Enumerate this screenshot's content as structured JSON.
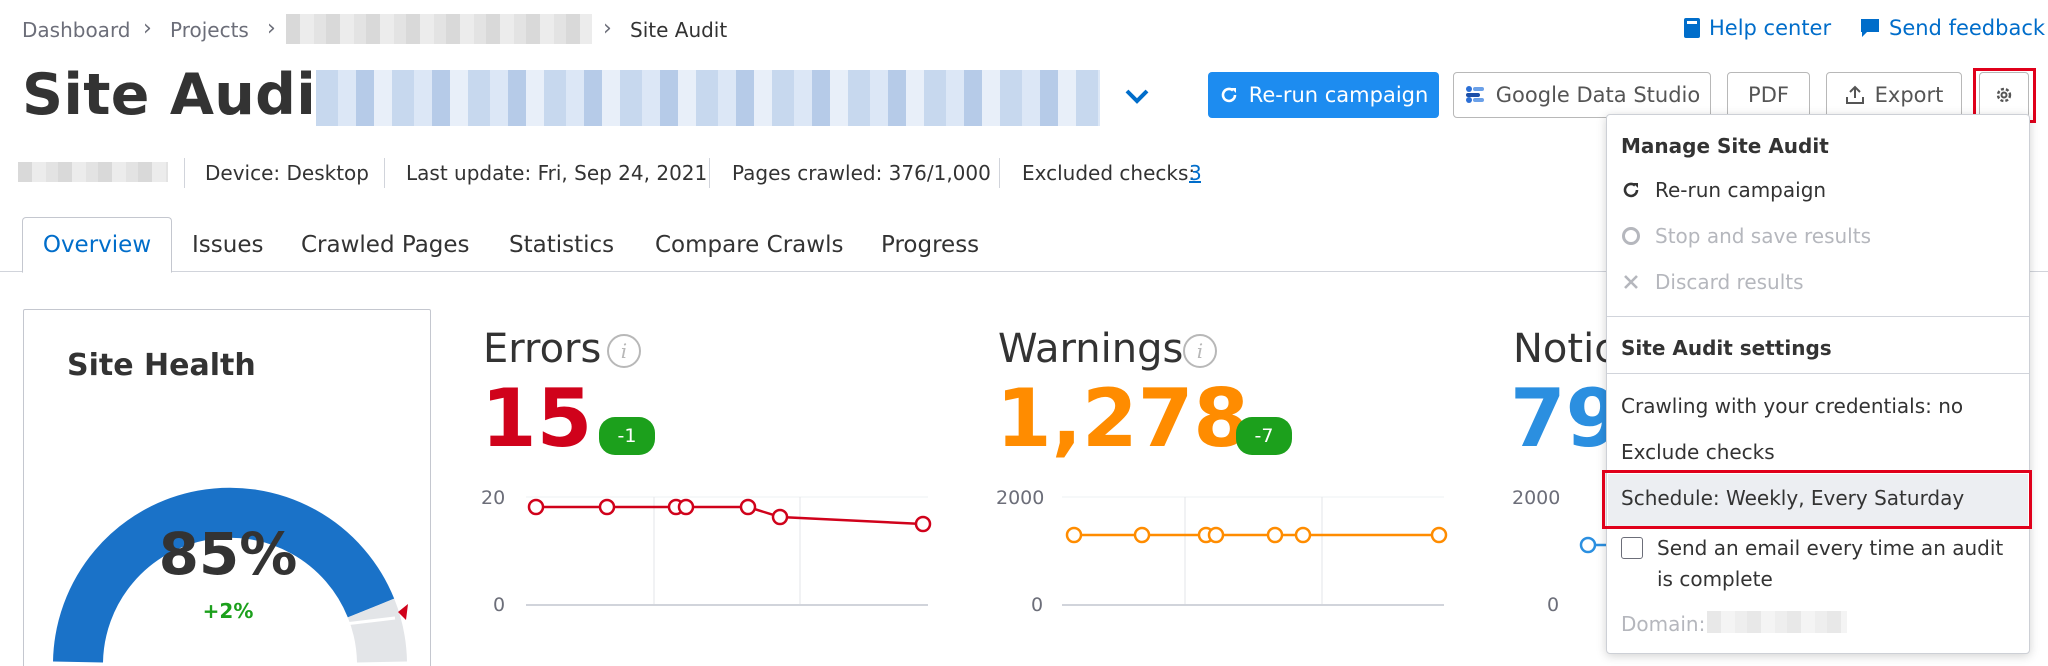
{
  "breadcrumb": {
    "dashboard": "Dashboard",
    "projects": "Projects",
    "current": "Site Audit"
  },
  "header_links": {
    "help": "Help center",
    "feedback": "Send feedback"
  },
  "title": "Site Audit:",
  "buttons": {
    "rerun": "Re-run campaign",
    "gds": "Google Data Studio",
    "pdf": "PDF",
    "export": "Export"
  },
  "meta": {
    "device": "Device: Desktop",
    "last_update": "Last update: Fri, Sep 24, 2021",
    "pages_crawled": "Pages crawled: 376/1,000",
    "excluded_label": "Excluded checks:",
    "excluded_count": "3"
  },
  "tabs": [
    "Overview",
    "Issues",
    "Crawled Pages",
    "Statistics",
    "Compare Crawls",
    "Progress"
  ],
  "site_health": {
    "title": "Site Health",
    "value": "85%",
    "change": "+2%",
    "fraction": 0.85
  },
  "errors": {
    "title": "Errors",
    "value": "15",
    "delta": "-1",
    "y_top": "20",
    "y_bottom": "0",
    "color": "#d0021b"
  },
  "warnings": {
    "title": "Warnings",
    "value": "1,278",
    "delta": "-7",
    "y_top": "2000",
    "y_bottom": "0",
    "color": "#ff8c00"
  },
  "notices": {
    "title_partial": "Notic",
    "value_partial": "79",
    "y_top": "2000",
    "y_bottom": "0",
    "color": "#2b8fe0"
  },
  "dropdown": {
    "manage_title": "Manage Site Audit",
    "rerun": "Re-run campaign",
    "stop": "Stop and save results",
    "discard": "Discard results",
    "settings_title": "Site Audit settings",
    "credentials": "Crawling with your credentials: no",
    "exclude": "Exclude checks",
    "schedule": "Schedule: Weekly, Every Saturday",
    "email": "Send an email every time an audit is complete",
    "domain_label": "Domain:"
  },
  "colors": {
    "accent": "#006dca",
    "primary_button": "#1d8cf0",
    "highlight": "#e0001b",
    "positive": "#1ca01c"
  }
}
